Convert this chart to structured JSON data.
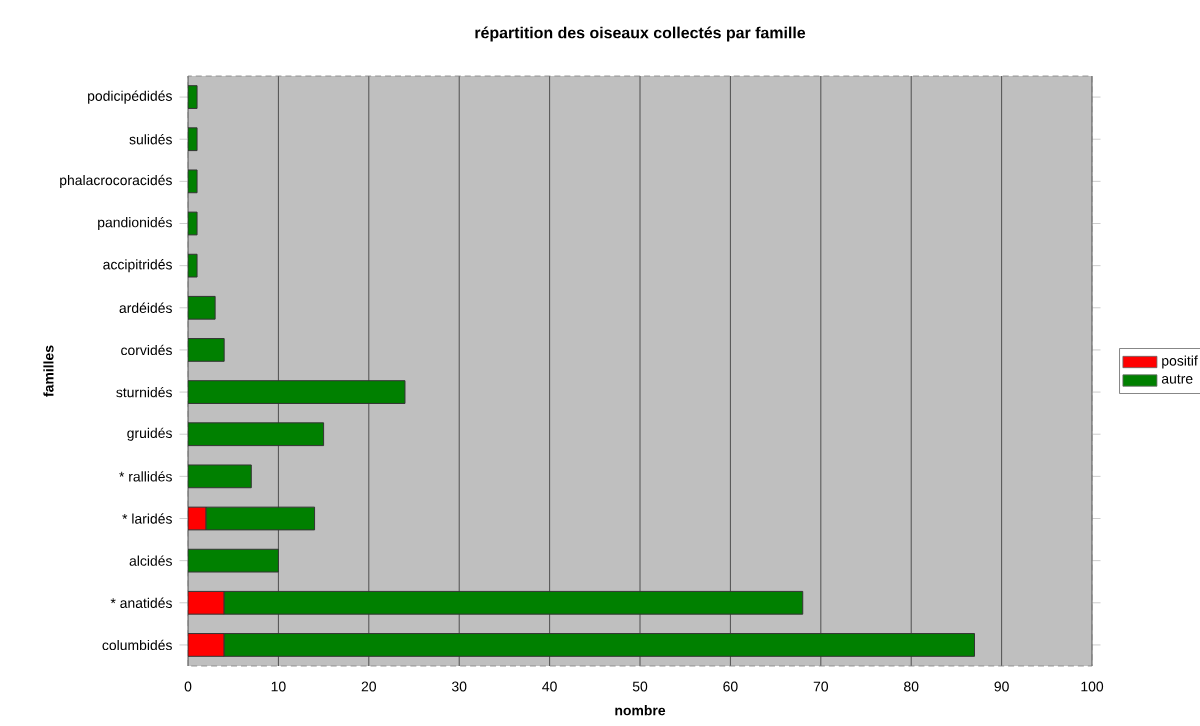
{
  "chart_data": {
    "type": "bar",
    "orientation": "horizontal",
    "stacked": true,
    "title": "répartition des oiseaux collectés par famille",
    "xlabel": "nombre",
    "ylabel": "familles",
    "categories": [
      "podicipédidés",
      "sulidés",
      "phalacrocoracidés",
      "pandionidés",
      "accipitridés",
      "ardéidés",
      "corvidés",
      "sturnidés",
      "gruidés",
      "* rallidés",
      "* laridés",
      "alcidés",
      "* anatidés",
      "columbidés"
    ],
    "series": [
      {
        "name": "positif",
        "color": "#ff0000",
        "values": [
          0,
          0,
          0,
          0,
          0,
          0,
          0,
          0,
          0,
          0,
          2,
          0,
          4,
          4
        ]
      },
      {
        "name": "autre",
        "color": "#008000",
        "values": [
          1,
          1,
          1,
          1,
          1,
          3,
          4,
          24,
          15,
          7,
          12,
          10,
          64,
          83
        ]
      }
    ],
    "xlim": [
      0,
      100
    ],
    "xticks": [
      0,
      10,
      20,
      30,
      40,
      50,
      60,
      70,
      80,
      90,
      100
    ],
    "grid": "x",
    "legend": "right"
  }
}
